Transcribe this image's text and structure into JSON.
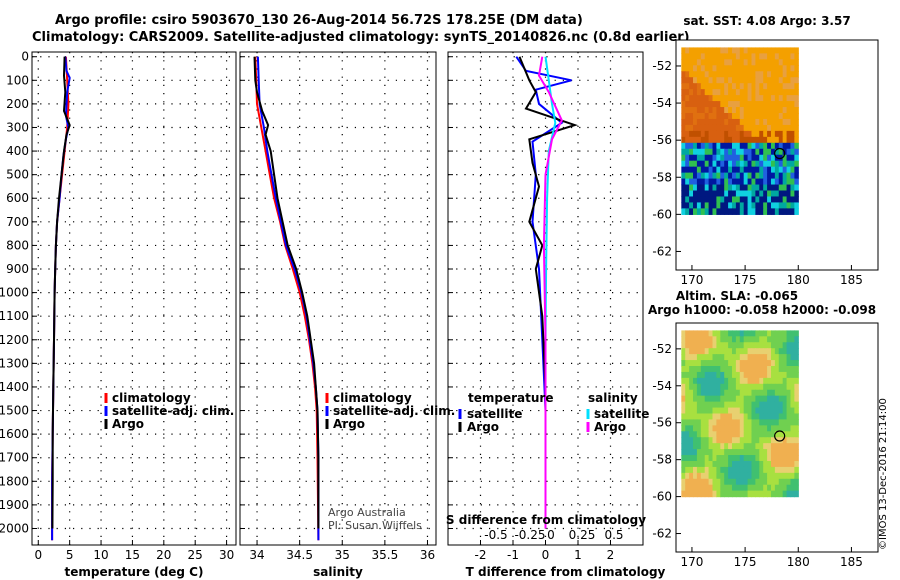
{
  "figure": {
    "title_line1": "Argo profile: csiro 5903670_130 26-Aug-2014 56.72S 178.25E (DM data)",
    "title_line2": "Climatology: CARS2009. Satellite-adjusted climatology: synTS_20140826.nc (0.8d earlier)",
    "credit": "©IMOS 13-Dec-2016 21:14:00"
  },
  "colors": {
    "climatology": "#ff0000",
    "satellite": "#0000ff",
    "argo": "#000000",
    "sal_satellite": "#00e0ff",
    "sal_argo": "#ff00ff"
  },
  "pressure_ticks": [
    0,
    100,
    200,
    300,
    400,
    500,
    600,
    700,
    800,
    900,
    1000,
    1100,
    1200,
    1300,
    1400,
    1500,
    1600,
    1700,
    1800,
    1900,
    2000
  ],
  "chart_data": [
    {
      "type": "line",
      "name": "temperature",
      "xlabel": "temperature (deg C)",
      "ylabel": "",
      "xlim": [
        -1,
        31.5
      ],
      "ylim": [
        2070,
        -20
      ],
      "xticks": [
        0,
        5,
        10,
        15,
        20,
        25,
        30
      ],
      "legend": [
        "climatology",
        "satellite-adj. clim.",
        "Argo"
      ],
      "series": [
        {
          "name": "climatology",
          "color": "#ff0000",
          "points": [
            [
              4.4,
              0
            ],
            [
              4.6,
              100
            ],
            [
              4.8,
              200
            ],
            [
              4.6,
              300
            ],
            [
              4.2,
              400
            ],
            [
              3.8,
              500
            ],
            [
              3.4,
              600
            ],
            [
              3.0,
              700
            ],
            [
              2.8,
              800
            ],
            [
              2.7,
              900
            ],
            [
              2.6,
              1000
            ],
            [
              2.5,
              1200
            ],
            [
              2.4,
              1400
            ],
            [
              2.3,
              1600
            ],
            [
              2.2,
              1800
            ],
            [
              2.2,
              2050
            ]
          ]
        },
        {
          "name": "satellite-adj. clim.",
          "color": "#0000ff",
          "points": [
            [
              4.3,
              0
            ],
            [
              4.5,
              60
            ],
            [
              5.0,
              90
            ],
            [
              4.6,
              150
            ],
            [
              4.4,
              250
            ],
            [
              4.8,
              300
            ],
            [
              4.4,
              350
            ],
            [
              4.0,
              420
            ],
            [
              3.7,
              500
            ],
            [
              3.4,
              600
            ],
            [
              3.0,
              700
            ],
            [
              2.8,
              800
            ],
            [
              2.7,
              900
            ],
            [
              2.6,
              1000
            ],
            [
              2.5,
              1200
            ],
            [
              2.4,
              1400
            ],
            [
              2.3,
              1600
            ],
            [
              2.2,
              1800
            ],
            [
              2.2,
              2050
            ]
          ]
        },
        {
          "name": "Argo",
          "color": "#000000",
          "points": [
            [
              4.2,
              0
            ],
            [
              4.1,
              80
            ],
            [
              4.3,
              150
            ],
            [
              4.1,
              230
            ],
            [
              5.0,
              290
            ],
            [
              4.5,
              330
            ],
            [
              4.1,
              400
            ],
            [
              3.7,
              500
            ],
            [
              3.3,
              600
            ],
            [
              3.0,
              700
            ],
            [
              2.8,
              800
            ],
            [
              2.7,
              900
            ],
            [
              2.6,
              1000
            ],
            [
              2.5,
              1200
            ],
            [
              2.4,
              1400
            ],
            [
              2.3,
              1600
            ],
            [
              2.3,
              1800
            ],
            [
              2.25,
              2000
            ]
          ]
        }
      ]
    },
    {
      "type": "line",
      "name": "salinity",
      "xlabel": "salinity",
      "ylabel": "",
      "xlim": [
        33.8,
        36.1
      ],
      "ylim": [
        2070,
        -20
      ],
      "xticks": [
        34,
        34.5,
        35,
        35.5,
        36
      ],
      "legend": [
        "climatology",
        "satellite-adj. clim.",
        "Argo"
      ],
      "notes": [
        "Argo Australia",
        "PI: Susan Wijffels"
      ],
      "series": [
        {
          "name": "climatology",
          "color": "#ff0000",
          "points": [
            [
              33.98,
              0
            ],
            [
              33.99,
              100
            ],
            [
              34.0,
              200
            ],
            [
              34.05,
              300
            ],
            [
              34.1,
              400
            ],
            [
              34.15,
              500
            ],
            [
              34.2,
              600
            ],
            [
              34.27,
              700
            ],
            [
              34.33,
              800
            ],
            [
              34.42,
              900
            ],
            [
              34.5,
              1000
            ],
            [
              34.56,
              1100
            ],
            [
              34.61,
              1200
            ],
            [
              34.65,
              1300
            ],
            [
              34.68,
              1400
            ],
            [
              34.7,
              1500
            ],
            [
              34.71,
              1700
            ],
            [
              34.72,
              2050
            ]
          ]
        },
        {
          "name": "satellite-adj. clim.",
          "color": "#0000ff",
          "points": [
            [
              34.01,
              0
            ],
            [
              34.02,
              100
            ],
            [
              34.03,
              200
            ],
            [
              34.08,
              300
            ],
            [
              34.12,
              400
            ],
            [
              34.17,
              500
            ],
            [
              34.22,
              600
            ],
            [
              34.28,
              700
            ],
            [
              34.34,
              800
            ],
            [
              34.44,
              900
            ],
            [
              34.52,
              1000
            ],
            [
              34.58,
              1100
            ],
            [
              34.62,
              1200
            ],
            [
              34.66,
              1300
            ],
            [
              34.69,
              1400
            ],
            [
              34.71,
              1500
            ],
            [
              34.72,
              1700
            ],
            [
              34.72,
              2050
            ]
          ]
        },
        {
          "name": "Argo",
          "color": "#000000",
          "points": [
            [
              33.97,
              0
            ],
            [
              33.98,
              100
            ],
            [
              34.0,
              150
            ],
            [
              34.06,
              230
            ],
            [
              34.13,
              290
            ],
            [
              34.1,
              330
            ],
            [
              34.16,
              400
            ],
            [
              34.2,
              500
            ],
            [
              34.24,
              600
            ],
            [
              34.3,
              700
            ],
            [
              34.36,
              800
            ],
            [
              34.46,
              900
            ],
            [
              34.53,
              1000
            ],
            [
              34.59,
              1100
            ],
            [
              34.63,
              1200
            ],
            [
              34.67,
              1300
            ],
            [
              34.69,
              1400
            ],
            [
              34.71,
              1500
            ],
            [
              34.72,
              1700
            ],
            [
              34.72,
              2000
            ]
          ]
        }
      ]
    },
    {
      "type": "line",
      "name": "differences",
      "xlabel": "T difference from climatology",
      "top_xlabel": "S difference from climatology",
      "xlim": [
        -3.0,
        3.0
      ],
      "ylim": [
        2070,
        -20
      ],
      "xticks": [
        -2,
        -1,
        0,
        1,
        2
      ],
      "top_xticks": [
        "-0.5",
        "-0.25",
        "0",
        "0.25",
        "0.5"
      ],
      "legend_temperature_title": "temperature",
      "legend_salinity_title": "salinity",
      "legend_temperature": [
        "satellite",
        "Argo"
      ],
      "legend_salinity": [
        "satellite",
        "Argo"
      ],
      "series": [
        {
          "name": "temperature satellite",
          "color": "#0000ff",
          "points": [
            [
              -0.9,
              0
            ],
            [
              -0.6,
              60
            ],
            [
              0.8,
              100
            ],
            [
              -0.3,
              140
            ],
            [
              -0.2,
              200
            ],
            [
              0.5,
              280
            ],
            [
              -0.4,
              360
            ],
            [
              -0.3,
              500
            ],
            [
              -0.4,
              700
            ],
            [
              -0.2,
              900
            ],
            [
              -0.1,
              1200
            ],
            [
              0.0,
              1500
            ],
            [
              0.0,
              2000
            ]
          ]
        },
        {
          "name": "temperature Argo",
          "color": "#000000",
          "points": [
            [
              -0.8,
              0
            ],
            [
              -0.5,
              100
            ],
            [
              -0.3,
              150
            ],
            [
              -0.6,
              220
            ],
            [
              0.9,
              290
            ],
            [
              -0.5,
              350
            ],
            [
              -0.4,
              450
            ],
            [
              -0.2,
              550
            ],
            [
              -0.5,
              700
            ],
            [
              -0.1,
              800
            ],
            [
              -0.3,
              900
            ],
            [
              -0.1,
              1100
            ],
            [
              0.0,
              1400
            ],
            [
              0.0,
              2000
            ]
          ]
        },
        {
          "name": "salinity satellite",
          "color": "#00e0ff",
          "points": [
            [
              0.0,
              0
            ],
            [
              0.1,
              100
            ],
            [
              0.2,
              200
            ],
            [
              0.3,
              280
            ],
            [
              0.1,
              400
            ],
            [
              0.05,
              600
            ],
            [
              0.02,
              900
            ],
            [
              0.0,
              1200
            ],
            [
              0.0,
              2000
            ]
          ]
        },
        {
          "name": "salinity Argo",
          "color": "#ff00ff",
          "points": [
            [
              -0.1,
              0
            ],
            [
              -0.2,
              80
            ],
            [
              0.1,
              150
            ],
            [
              0.5,
              270
            ],
            [
              0.2,
              350
            ],
            [
              0.0,
              500
            ],
            [
              -0.05,
              800
            ],
            [
              0.0,
              1200
            ],
            [
              0.0,
              2000
            ]
          ]
        }
      ]
    }
  ],
  "maps": [
    {
      "name": "sst-map",
      "title": "sat. SST: 4.08 Argo: 3.57",
      "lon_ticks": [
        170,
        175,
        180,
        185
      ],
      "lat_ticks": [
        -52,
        -54,
        -56,
        -58,
        -60,
        -62
      ],
      "xlim": [
        168.5,
        187.5
      ],
      "ylim": [
        -63,
        -50.6
      ],
      "data_extent": {
        "lon": [
          169,
          180
        ],
        "lat": [
          -60,
          -51
        ]
      },
      "float_position": {
        "lon": 178.25,
        "lat": -56.72
      }
    },
    {
      "name": "sla-map",
      "title_line1": "Altim. SLA: -0.065",
      "title_line2": "Argo h1000: -0.058 h2000: -0.098",
      "lon_ticks": [
        170,
        175,
        180,
        185
      ],
      "lat_ticks": [
        -52,
        -54,
        -56,
        -58,
        -60,
        -62
      ],
      "xlim": [
        168.5,
        187.5
      ],
      "ylim": [
        -63,
        -50.6
      ],
      "data_extent": {
        "lon": [
          169,
          180
        ],
        "lat": [
          -60,
          -51
        ]
      },
      "float_position": {
        "lon": 178.25,
        "lat": -56.72
      }
    }
  ]
}
